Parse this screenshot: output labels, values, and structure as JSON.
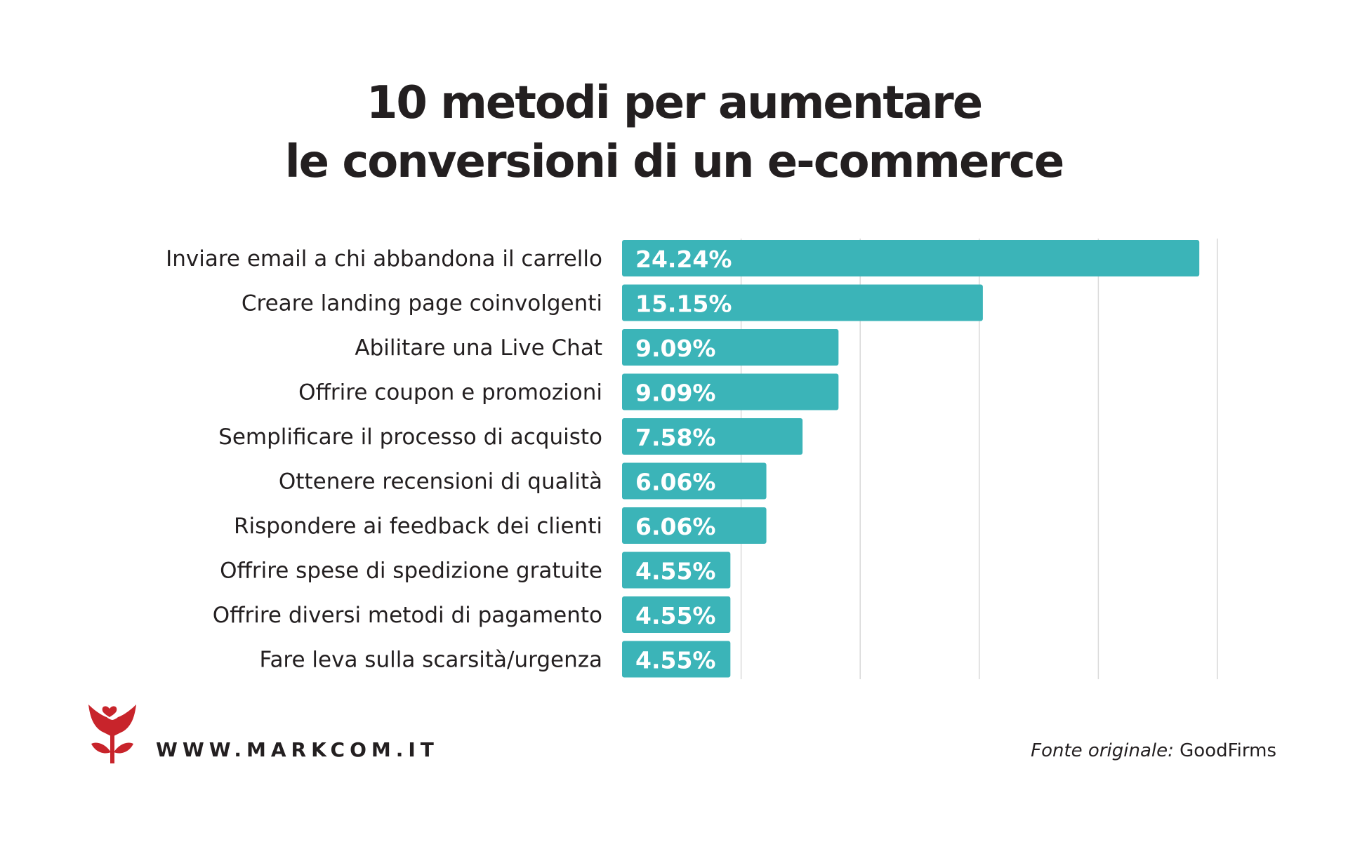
{
  "chart_data": {
    "type": "bar",
    "orientation": "horizontal",
    "title": [
      "10 metodi per aumentare",
      "le conversioni di un e-commerce"
    ],
    "categories": [
      "Inviare email a chi abbandona il carrello",
      "Creare landing page coinvolgenti",
      "Abilitare una Live Chat",
      "Offrire coupon e promozioni",
      "Semplificare il processo di acquisto",
      "Ottenere recensioni di qualità",
      "Rispondere ai feedback dei clienti",
      "Offrire spese di spedizione gratuite",
      "Offrire diversi metodi di pagamento",
      "Fare leva sulla scarsità/urgenza"
    ],
    "values": [
      24.24,
      15.15,
      9.09,
      9.09,
      7.58,
      6.06,
      6.06,
      4.55,
      4.55,
      4.55
    ],
    "value_labels": [
      "24.24%",
      "15.15%",
      "9.09%",
      "9.09%",
      "7.58%",
      "6.06%",
      "6.06%",
      "4.55%",
      "4.55%",
      "4.55%"
    ],
    "xlim": [
      0,
      25
    ],
    "grid": true,
    "bar_color": "#3bb4b8"
  },
  "footer": {
    "website": "WWW.MARKCOM.IT",
    "source_prefix": "Fonte originale:",
    "source_name": "GoodFirms"
  },
  "colors": {
    "logo": "#c8242b",
    "text": "#231f20",
    "grid": "#d9d9d9"
  }
}
